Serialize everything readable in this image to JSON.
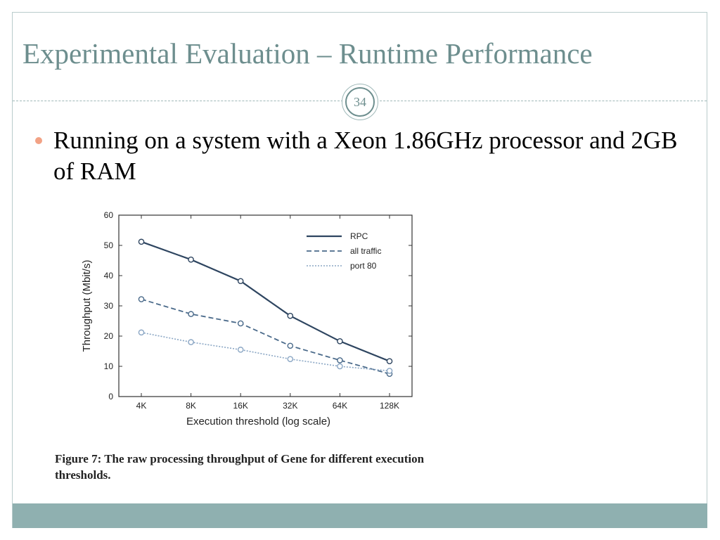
{
  "slide": {
    "title": "Experimental Evaluation – Runtime Performance",
    "page_number": "34",
    "bullet": "Running on a system with a Xeon 1.86GHz processor and 2GB of RAM",
    "caption": "Figure 7: The raw processing throughput of Gene for different execution thresholds.",
    "colors": {
      "title": "#6d8e8e",
      "bullet": "#f2a285",
      "footer": "#8fb0b0"
    }
  },
  "chart_data": {
    "type": "line",
    "x": [
      "4K",
      "8K",
      "16K",
      "32K",
      "64K",
      "128K"
    ],
    "xlabel": "Execution threshold (log scale)",
    "ylabel": "Throughput (Mbit/s)",
    "ylim": [
      0,
      60
    ],
    "yticks": [
      0,
      10,
      20,
      30,
      40,
      50,
      60
    ],
    "legend_position": "top-right",
    "series": [
      {
        "name": "RPC",
        "values": [
          51.2,
          45.3,
          38.2,
          26.7,
          18.3,
          11.7
        ],
        "style": "solid",
        "color": "#2e4560"
      },
      {
        "name": "all traffic",
        "values": [
          32.2,
          27.3,
          24.2,
          16.8,
          12.0,
          7.5
        ],
        "style": "dashed",
        "color": "#4a6a8a"
      },
      {
        "name": "port 80",
        "values": [
          21.2,
          18.0,
          15.5,
          12.4,
          10.0,
          8.5
        ],
        "style": "dotted",
        "color": "#8aa6c4"
      }
    ]
  }
}
